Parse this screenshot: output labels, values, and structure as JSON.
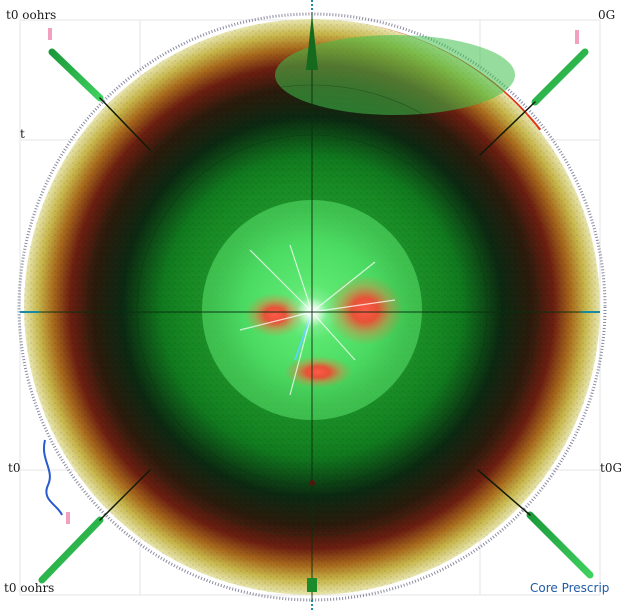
{
  "labels": {
    "top_left": "t0 oohrs",
    "top_right": "0G",
    "left_mid": "t",
    "left_low": "t0",
    "right_low": "t0G",
    "bottom_left": "t0 oohrs",
    "bottom_right": "Core Prescrip"
  },
  "colors": {
    "background": "#ffffff",
    "outer_ring": "#b7cc5a",
    "dark_band": "#1f2a12",
    "green_field": "#1aa52a",
    "bright_green": "#58e86a",
    "core_red": "#ff3b2f",
    "rim_red": "#e0331a",
    "diagonal_green": "#2aa84a"
  }
}
